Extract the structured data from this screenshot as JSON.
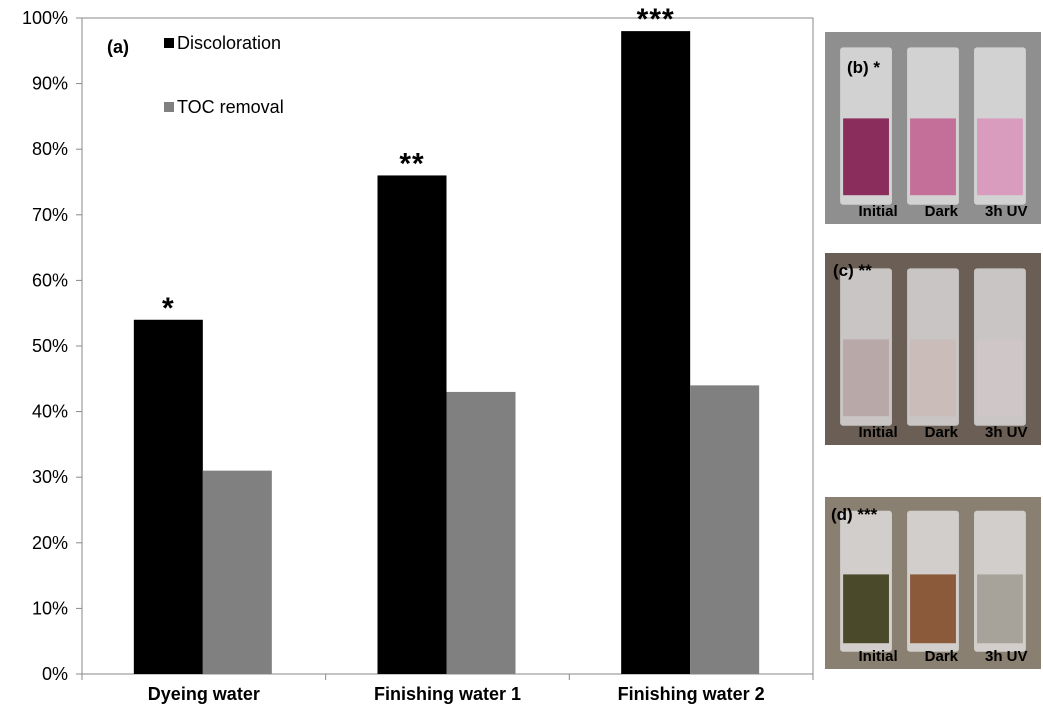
{
  "chart_data": {
    "type": "bar",
    "panel_label": "(a)",
    "categories": [
      "Dyeing water",
      "Finishing water 1",
      "Finishing water 2"
    ],
    "series": [
      {
        "name": "Discoloration",
        "values": [
          54,
          76,
          98
        ],
        "color": "#000000"
      },
      {
        "name": "TOC removal",
        "values": [
          31,
          43,
          44
        ],
        "color": "#808080"
      }
    ],
    "annotations": [
      "*",
      "**",
      "***"
    ],
    "ylim": [
      0,
      100
    ],
    "yticks": [
      "0%",
      "10%",
      "20%",
      "30%",
      "40%",
      "50%",
      "60%",
      "70%",
      "80%",
      "90%",
      "100%"
    ],
    "xlabel": "",
    "ylabel": "",
    "legend_position": "top-left",
    "grid": false
  },
  "photos": [
    {
      "label": "(b) *",
      "captions": [
        "Initial",
        "Dark",
        "3h UV"
      ],
      "liquid_colors": [
        "#8a2c5c",
        "#c46f9a",
        "#d99cbf"
      ],
      "background": "#8f8f8f"
    },
    {
      "label": "(c) **",
      "captions": [
        "Initial",
        "Dark",
        "3h UV"
      ],
      "liquid_colors": [
        "#b9a8a8",
        "#c9bcb9",
        "#cfc7c7"
      ],
      "background": "#6b5e55"
    },
    {
      "label": "(d) ***",
      "captions": [
        "Initial",
        "Dark",
        "3h UV"
      ],
      "liquid_colors": [
        "#4a4a2a",
        "#8a5a3a",
        "#a8a39a"
      ],
      "background": "#8a8072"
    }
  ]
}
